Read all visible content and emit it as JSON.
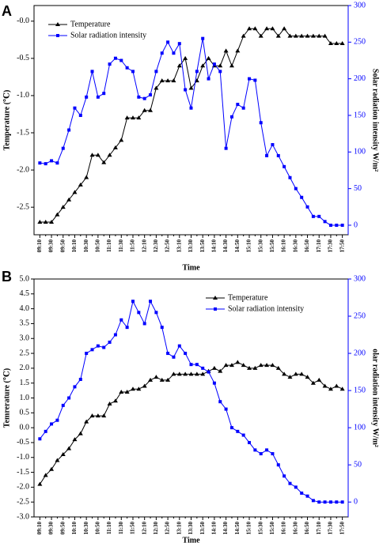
{
  "chart_data": [
    {
      "type": "line",
      "panel": "A",
      "xlabel": "Time",
      "ylabel": "Temperature (℃)",
      "y2label": "Solar radiation intensity W/m²",
      "legend": "upper left",
      "categories": [
        "09:10",
        null,
        "09:30",
        null,
        "09:50",
        null,
        "10:10",
        null,
        "10:30",
        null,
        "10:50",
        null,
        "11:10",
        null,
        "11:30",
        null,
        "11:50",
        null,
        "12:10",
        null,
        "12:30",
        null,
        "12:50",
        null,
        "13:10",
        null,
        "13:30",
        null,
        "13:50",
        null,
        "14:10",
        null,
        "14:30",
        null,
        "14:50",
        null,
        "15:10",
        null,
        "15:30",
        null,
        "15:50",
        null,
        "16:10",
        null,
        "16:30",
        null,
        "16:50",
        null,
        "17:10",
        null,
        "17:30",
        null,
        "17:50"
      ],
      "ylim": [
        -2.87,
        0.21
      ],
      "yticks": [
        {
          "value": 0,
          "label": "-0.0"
        },
        -0.5,
        {
          "value": -1,
          "label": "-1.0"
        },
        -1.5,
        {
          "value": -2,
          "label": "-2.0"
        },
        -2.5
      ],
      "y2lim": [
        -13,
        300
      ],
      "y2ticks": [
        0,
        50,
        100,
        150,
        200,
        250,
        300
      ],
      "series": [
        {
          "name": "Temperature",
          "color": "#000000",
          "marker": "triangle",
          "axis": "y",
          "values": [
            -2.7,
            -2.7,
            -2.7,
            -2.6,
            -2.5,
            -2.4,
            -2.3,
            -2.2,
            -2.1,
            -1.8,
            -1.8,
            -1.9,
            -1.8,
            -1.7,
            -1.6,
            -1.3,
            -1.3,
            -1.3,
            -1.2,
            -1.2,
            -0.9,
            -0.8,
            -0.8,
            -0.8,
            -0.6,
            -0.5,
            -0.9,
            -0.8,
            -0.6,
            -0.5,
            -0.6,
            -0.6,
            -0.4,
            -0.6,
            -0.4,
            -0.2,
            -0.1,
            -0.1,
            -0.2,
            -0.1,
            -0.1,
            -0.2,
            -0.1,
            -0.2,
            -0.2,
            -0.2,
            -0.2,
            -0.2,
            -0.2,
            -0.2,
            -0.3,
            -0.3,
            -0.3
          ]
        },
        {
          "name": "Solar radiation intensity",
          "color": "#0000ff",
          "marker": "square",
          "axis": "y2",
          "values": [
            85,
            84,
            88,
            85,
            105,
            130,
            160,
            150,
            175,
            210,
            175,
            180,
            220,
            228,
            225,
            215,
            210,
            175,
            173,
            178,
            210,
            235,
            250,
            235,
            248,
            185,
            160,
            210,
            255,
            200,
            220,
            210,
            105,
            148,
            165,
            160,
            200,
            198,
            140,
            95,
            110,
            95,
            80,
            65,
            50,
            38,
            25,
            12,
            12,
            5,
            0,
            0,
            0
          ]
        }
      ]
    },
    {
      "type": "line",
      "panel": "B",
      "xlabel": "Time",
      "ylabel": "Temrerature (℃)",
      "y2label": "olar radiation intensity W/m²",
      "legend": "upper right",
      "categories": [
        "09:10",
        null,
        "09:30",
        null,
        "09:50",
        null,
        "10:10",
        null,
        "10:30",
        null,
        "10:50",
        null,
        "11:10",
        null,
        "11:30",
        null,
        "11:50",
        null,
        "12:10",
        null,
        "12:30",
        null,
        "12:50",
        null,
        "13:10",
        null,
        "13:30",
        null,
        "13:50",
        null,
        "14:10",
        null,
        "14:30",
        null,
        "14:50",
        null,
        "15:10",
        null,
        "15:30",
        null,
        "15:50",
        null,
        "16:10",
        null,
        "16:30",
        null,
        "16:50",
        null,
        "17:10",
        null,
        "17:30",
        null,
        "17:50"
      ],
      "ylim": [
        -3,
        5
      ],
      "yticks": [
        {
          "value": -3,
          "label": "-3.0"
        },
        -2.5,
        {
          "value": -2,
          "label": "-2.0"
        },
        -1.5,
        {
          "value": -1,
          "label": "-1.0"
        },
        -0.5,
        {
          "value": 0,
          "label": "0.0"
        },
        0.5,
        {
          "value": 1,
          "label": "1.0"
        },
        1.5,
        {
          "value": 2,
          "label": "2.0"
        },
        2.5,
        {
          "value": 3,
          "label": "3.0"
        },
        3.5,
        {
          "value": 4,
          "label": "4.0"
        },
        4.5,
        {
          "value": 5,
          "label": "5.0"
        }
      ],
      "y2lim": [
        -20,
        300
      ],
      "y2ticks": [
        0,
        50,
        100,
        150,
        200,
        250,
        300
      ],
      "series": [
        {
          "name": "Temperature",
          "color": "#000000",
          "marker": "triangle",
          "axis": "y",
          "values": [
            -1.9,
            -1.6,
            -1.4,
            -1.1,
            -0.9,
            -0.7,
            -0.4,
            -0.2,
            0.2,
            0.4,
            0.4,
            0.4,
            0.8,
            0.9,
            1.2,
            1.2,
            1.3,
            1.3,
            1.4,
            1.6,
            1.7,
            1.6,
            1.6,
            1.8,
            1.8,
            1.8,
            1.8,
            1.8,
            1.8,
            1.9,
            2.0,
            1.9,
            2.1,
            2.1,
            2.2,
            2.1,
            2.0,
            2.0,
            2.1,
            2.1,
            2.1,
            2.0,
            1.8,
            1.7,
            1.8,
            1.8,
            1.7,
            1.5,
            1.6,
            1.4,
            1.3,
            1.4,
            1.3
          ]
        },
        {
          "name": "Solar radiation intensity",
          "color": "#0000ff",
          "marker": "square",
          "axis": "y2",
          "values": [
            85,
            95,
            105,
            110,
            130,
            140,
            155,
            165,
            200,
            205,
            210,
            208,
            215,
            225,
            245,
            235,
            270,
            255,
            240,
            270,
            255,
            235,
            200,
            195,
            210,
            200,
            185,
            185,
            180,
            175,
            160,
            135,
            125,
            100,
            95,
            90,
            80,
            70,
            65,
            70,
            65,
            50,
            35,
            25,
            20,
            12,
            8,
            2,
            0,
            0,
            0,
            0,
            0
          ]
        }
      ]
    }
  ]
}
